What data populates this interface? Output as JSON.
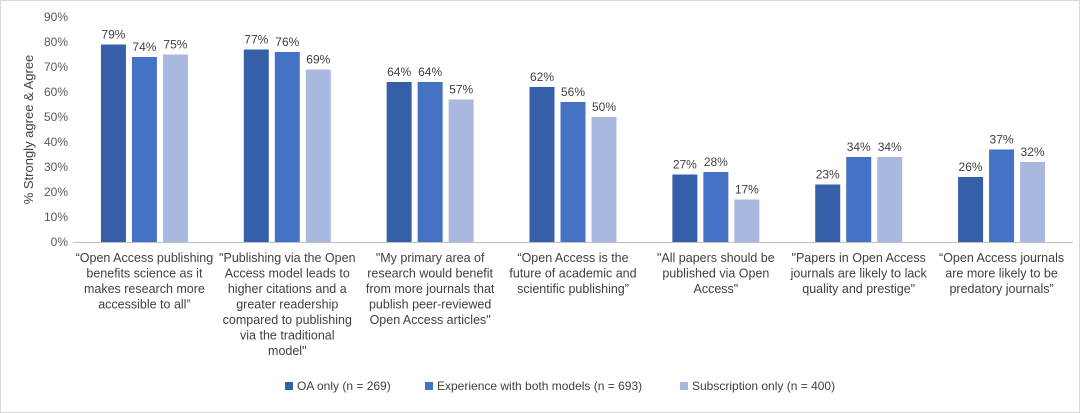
{
  "chart_data": {
    "type": "bar",
    "title": "",
    "xlabel": "",
    "ylabel": "% Strongly agree & Agree",
    "ylim": [
      0,
      90
    ],
    "ytick_step": 10,
    "ytick_suffix": "%",
    "grid": false,
    "legend_position": "bottom",
    "categories": [
      [
        "“Open Access publishing",
        "benefits science as it",
        "makes research more",
        "accessible to all”"
      ],
      [
        "\"Publishing via the Open",
        "Access model leads to",
        "higher citations and a",
        "greater readership",
        "compared to publishing",
        "via the traditional",
        "model\""
      ],
      [
        "\"My primary area of",
        "research would benefit",
        "from more journals that",
        "publish peer-reviewed",
        "Open Access articles\""
      ],
      [
        "“Open Access is the",
        "future of academic and",
        "scientific publishing”"
      ],
      [
        "\"All papers should be",
        "published via Open",
        "Access\""
      ],
      [
        "\"Papers in Open Access",
        "journals are likely to lack",
        "quality and prestige\""
      ],
      [
        "“Open Access journals",
        "are more likely to be",
        "predatory journals”"
      ]
    ],
    "series": [
      {
        "name": "OA only (n = 269)",
        "color": "#355fa8",
        "values": [
          79,
          77,
          64,
          62,
          27,
          23,
          26
        ]
      },
      {
        "name": "Experience with both models (n = 693)",
        "color": "#4472c4",
        "values": [
          74,
          76,
          64,
          56,
          28,
          34,
          37
        ]
      },
      {
        "name": "Subscription only (n = 400)",
        "color": "#a9b8df",
        "values": [
          75,
          69,
          57,
          50,
          17,
          34,
          32
        ]
      }
    ]
  }
}
